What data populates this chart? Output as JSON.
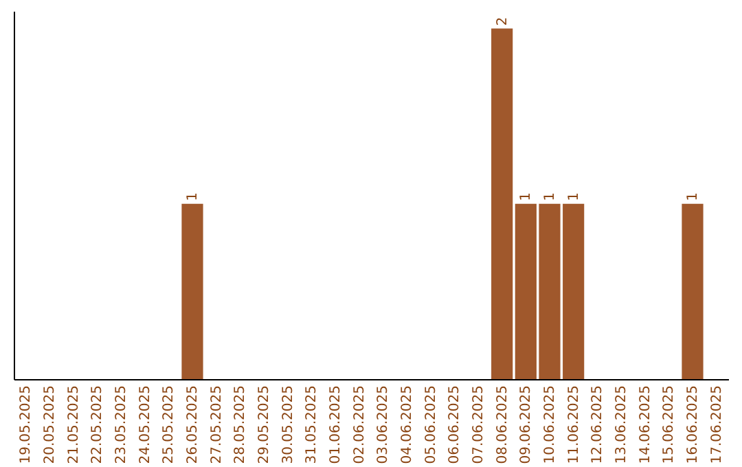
{
  "chart_data": {
    "type": "bar",
    "categories": [
      "19.05.2025",
      "20.05.2025",
      "21.05.2025",
      "22.05.2025",
      "23.05.2025",
      "24.05.2025",
      "25.05.2025",
      "26.05.2025",
      "27.05.2025",
      "28.05.2025",
      "29.05.2025",
      "30.05.2025",
      "31.05.2025",
      "01.06.2025",
      "02.06.2025",
      "03.06.2025",
      "04.06.2025",
      "05.06.2025",
      "06.06.2025",
      "07.06.2025",
      "08.06.2025",
      "09.06.2025",
      "10.06.2025",
      "11.06.2025",
      "12.06.2025",
      "13.06.2025",
      "14.06.2025",
      "15.06.2025",
      "16.06.2025",
      "17.06.2025"
    ],
    "values": [
      0,
      0,
      0,
      0,
      0,
      0,
      0,
      1,
      0,
      0,
      0,
      0,
      0,
      0,
      0,
      0,
      0,
      0,
      0,
      0,
      2,
      1,
      1,
      1,
      0,
      0,
      0,
      0,
      1,
      0
    ],
    "value_labels": [
      null,
      null,
      null,
      null,
      null,
      null,
      null,
      "1",
      null,
      null,
      null,
      null,
      null,
      null,
      null,
      null,
      null,
      null,
      null,
      null,
      "2",
      "1",
      "1",
      "1",
      null,
      null,
      null,
      null,
      "1",
      null
    ],
    "color": "#a0582c",
    "ylim": [
      0,
      2.1
    ],
    "tick_labels": "x",
    "grid": false
  }
}
